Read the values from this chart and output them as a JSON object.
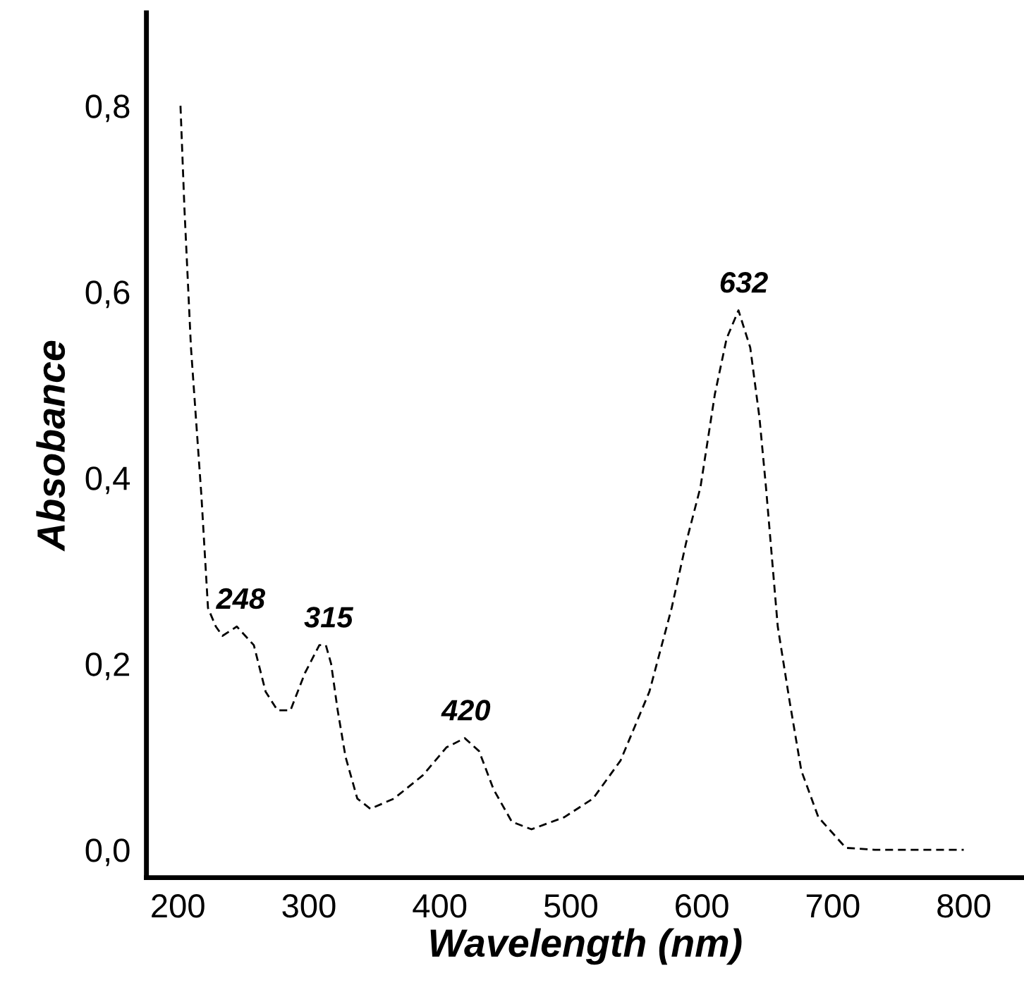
{
  "chart_data": {
    "type": "line",
    "xlabel": "Wavelength (nm)",
    "ylabel": "Absobance",
    "xlim": [
      176,
      846
    ],
    "ylim": [
      -0.03,
      0.9
    ],
    "xticks": [
      200,
      300,
      400,
      500,
      600,
      700,
      800
    ],
    "yticks": [
      {
        "value": 0,
        "label": "0,0"
      },
      {
        "value": 0.2,
        "label": "0,2"
      },
      {
        "value": 0.4,
        "label": "0,4"
      },
      {
        "value": 0.6,
        "label": "0,6"
      },
      {
        "value": 0.8,
        "label": "0,8"
      }
    ],
    "grid": false,
    "marker": "none",
    "line_style": "dashed",
    "series": [
      {
        "color": "#000000",
        "x": [
          202,
          205,
          210,
          218,
          223,
          229,
          234,
          245,
          258,
          267,
          276,
          286,
          297,
          308,
          313,
          317,
          322,
          328,
          337,
          347,
          365,
          387,
          405,
          419,
          430,
          441,
          455,
          470,
          495,
          517,
          538,
          560,
          577,
          588,
          599,
          610,
          619,
          628,
          637,
          644,
          649,
          658,
          667,
          676,
          689,
          710,
          732,
          753,
          800
        ],
        "values": [
          0.8,
          0.69,
          0.54,
          0.38,
          0.26,
          0.24,
          0.23,
          0.24,
          0.22,
          0.17,
          0.15,
          0.15,
          0.19,
          0.22,
          0.22,
          0.2,
          0.15,
          0.1,
          0.055,
          0.044,
          0.055,
          0.08,
          0.11,
          0.12,
          0.106,
          0.065,
          0.03,
          0.022,
          0.035,
          0.055,
          0.096,
          0.17,
          0.26,
          0.33,
          0.39,
          0.49,
          0.55,
          0.58,
          0.54,
          0.465,
          0.39,
          0.24,
          0.16,
          0.085,
          0.035,
          0.002,
          0,
          0,
          0
        ]
      }
    ],
    "annotations": [
      {
        "text": "248",
        "x": 248,
        "y": 0.24
      },
      {
        "text": "315",
        "x": 315,
        "y": 0.22
      },
      {
        "text": "420",
        "x": 420,
        "y": 0.12
      },
      {
        "text": "632",
        "x": 632,
        "y": 0.58
      }
    ]
  }
}
